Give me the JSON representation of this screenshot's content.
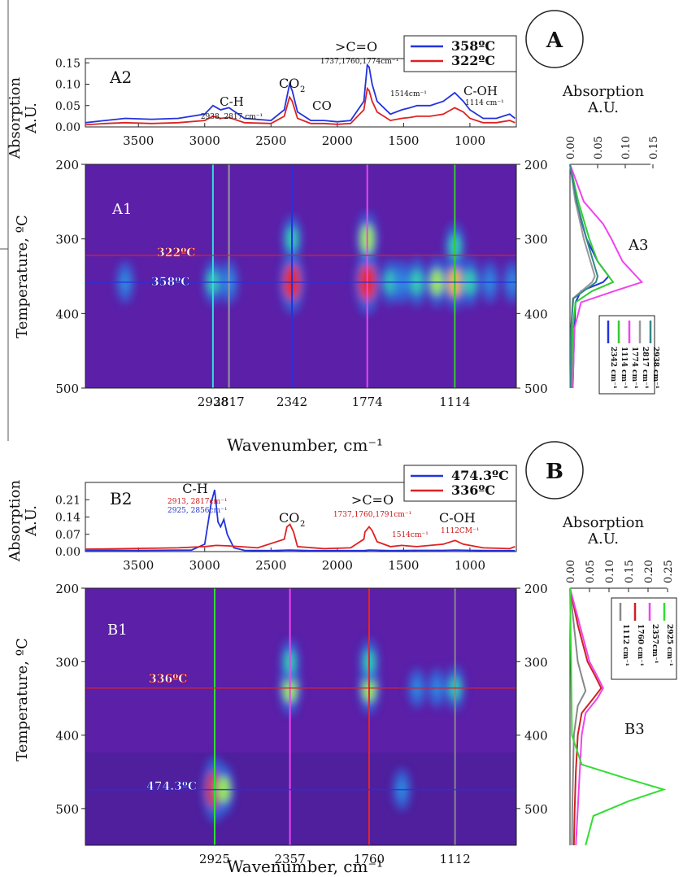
{
  "panels": {
    "A": {
      "letter": "A",
      "spectrum": {
        "label": "A2",
        "ylabel_line1": "Absorption",
        "ylabel_line2": "A.U.",
        "yticks": [
          "0.00",
          "0.05",
          "0.10",
          "0.15"
        ],
        "xticks": [
          "3500",
          "3000",
          "2500",
          "2000",
          "1500",
          "1000"
        ],
        "legend": [
          {
            "name": "358ºC",
            "color": "#2233dd"
          },
          {
            "name": "322ºC",
            "color": "#dd2222"
          }
        ],
        "annotations": {
          "ch": "C-H",
          "ch_sub": "2938, 2817 cm⁻¹",
          "co2_main": "CO",
          "co2_sub": "2",
          "co": "CO",
          "carbonyl": ">C=O",
          "carbonyl_sub": "1737,1760,1774cm⁻¹",
          "peak1514": "1514cm⁻¹",
          "coh": "C-OH",
          "coh_sub": "1114 cm⁻¹"
        }
      },
      "map": {
        "label": "A1",
        "ylabel": "Temperature, ºC",
        "yticks": [
          "200",
          "300",
          "400",
          "500"
        ],
        "marker_hi": "322ºC",
        "marker_lo": "358ºC",
        "vlines": [
          {
            "wn": "2938",
            "color": "#33dddd"
          },
          {
            "wn": "2817",
            "color": "#999999"
          },
          {
            "wn": "2342",
            "color": "#2233dd"
          },
          {
            "wn": "1774",
            "color": "#ee44ee"
          },
          {
            "wn": "1114",
            "color": "#33cc33"
          }
        ],
        "xlabel": "Wavenumber, cm⁻¹"
      },
      "profile": {
        "label": "A3",
        "title_line1": "Absorption",
        "title_line2": "A.U.",
        "xticks": [
          "0.00",
          "0.05",
          "0.10",
          "0.15"
        ],
        "legend": [
          {
            "name": "2342 cm⁻¹",
            "color": "#2233dd"
          },
          {
            "name": "1114 cm⁻¹",
            "color": "#33cc33"
          },
          {
            "name": "1774 cm⁻¹",
            "color": "#ee44ee"
          },
          {
            "name": "2817 cm⁻¹",
            "color": "#999999"
          },
          {
            "name": "2938 cm⁻¹",
            "color": "#338888"
          }
        ]
      }
    },
    "B": {
      "letter": "B",
      "spectrum": {
        "label": "B2",
        "ylabel_line1": "Absorption",
        "ylabel_line2": "A.U.",
        "yticks": [
          "0.00",
          "0.07",
          "0.14",
          "0.21"
        ],
        "xticks": [
          "3500",
          "3000",
          "2500",
          "2000",
          "1500",
          "1000"
        ],
        "legend": [
          {
            "name": "474.3ºC",
            "color": "#2233dd"
          },
          {
            "name": "336ºC",
            "color": "#dd2222"
          }
        ],
        "annotations": {
          "ch": "C-H",
          "ch_sub_red": "2913, 2817cm⁻¹",
          "ch_sub_blue": "2925, 2856cm⁻¹",
          "co2_main": "CO",
          "co2_sub": "2",
          "carbonyl": ">C=O",
          "carbonyl_sub": "1737,1760,1791cm⁻¹",
          "peak1514": "1514cm⁻¹",
          "coh": "C-OH",
          "coh_sub": "1112CM⁻¹"
        }
      },
      "map": {
        "label": "B1",
        "ylabel": "Temperature, ºC",
        "yticks": [
          "200",
          "300",
          "400",
          "500"
        ],
        "marker_hi": "336ºC",
        "marker_lo": "474.3ºC",
        "vlines": [
          {
            "wn": "2925",
            "color": "#33dd33"
          },
          {
            "wn": "2357",
            "color": "#ee44ee"
          },
          {
            "wn": "1760",
            "color": "#ee2222"
          },
          {
            "wn": "1112",
            "color": "#888888"
          }
        ],
        "xlabel": "Wavenumber, cm⁻¹"
      },
      "profile": {
        "label": "B3",
        "title_line1": "Absorption",
        "title_line2": "A.U.",
        "xticks": [
          "0.00",
          "0.05",
          "0.10",
          "0.15",
          "0.20",
          "0.25"
        ],
        "legend": [
          {
            "name": "1112 cm⁻¹",
            "color": "#888888"
          },
          {
            "name": "1760 cm⁻¹",
            "color": "#cc2222"
          },
          {
            "name": "2357cm⁻¹",
            "color": "#ee44ee"
          },
          {
            "name": "2925 cm⁻¹",
            "color": "#33dd33"
          }
        ]
      }
    }
  },
  "chart_data": [
    {
      "type": "line",
      "panel": "A2",
      "xlabel": "",
      "ylabel": "Absorption A.U.",
      "xlim": [
        3900,
        650
      ],
      "ylim": [
        0,
        0.16
      ],
      "series": [
        {
          "name": "358ºC",
          "color": "#2233dd",
          "x": [
            3900,
            3750,
            3600,
            3400,
            3200,
            3000,
            2938,
            2880,
            2817,
            2700,
            2500,
            2400,
            2360,
            2340,
            2300,
            2200,
            2100,
            2000,
            1900,
            1800,
            1774,
            1760,
            1737,
            1700,
            1600,
            1514,
            1450,
            1400,
            1300,
            1200,
            1114,
            1050,
            1000,
            900,
            800,
            700,
            660
          ],
          "y": [
            0.01,
            0.015,
            0.02,
            0.018,
            0.02,
            0.03,
            0.05,
            0.04,
            0.045,
            0.02,
            0.015,
            0.04,
            0.1,
            0.085,
            0.035,
            0.015,
            0.015,
            0.012,
            0.015,
            0.06,
            0.145,
            0.14,
            0.1,
            0.06,
            0.03,
            0.04,
            0.045,
            0.05,
            0.05,
            0.06,
            0.08,
            0.06,
            0.04,
            0.02,
            0.02,
            0.03,
            0.02
          ]
        },
        {
          "name": "322ºC",
          "color": "#dd2222",
          "x": [
            3900,
            3750,
            3600,
            3400,
            3200,
            3000,
            2938,
            2880,
            2817,
            2700,
            2500,
            2400,
            2360,
            2340,
            2300,
            2200,
            2100,
            2000,
            1900,
            1800,
            1774,
            1760,
            1737,
            1700,
            1600,
            1514,
            1450,
            1400,
            1300,
            1200,
            1114,
            1050,
            1000,
            900,
            800,
            700,
            660
          ],
          "y": [
            0.005,
            0.008,
            0.01,
            0.008,
            0.01,
            0.015,
            0.025,
            0.02,
            0.022,
            0.01,
            0.008,
            0.025,
            0.07,
            0.06,
            0.02,
            0.008,
            0.008,
            0.006,
            0.008,
            0.04,
            0.09,
            0.085,
            0.06,
            0.035,
            0.015,
            0.02,
            0.022,
            0.025,
            0.025,
            0.03,
            0.045,
            0.035,
            0.02,
            0.01,
            0.01,
            0.015,
            0.01
          ]
        }
      ]
    },
    {
      "type": "heatmap",
      "panel": "A1",
      "xlabel": "Wavenumber, cm⁻¹",
      "ylabel": "Temperature, ºC",
      "xlim": [
        3900,
        650
      ],
      "ylim": [
        500,
        200
      ],
      "hotspots": [
        {
          "x": 3600,
          "y": 358,
          "v": 0.35
        },
        {
          "x": 2938,
          "y": 358,
          "v": 0.45
        },
        {
          "x": 2817,
          "y": 358,
          "v": 0.4
        },
        {
          "x": 2342,
          "y": 358,
          "v": 0.95
        },
        {
          "x": 2342,
          "y": 300,
          "v": 0.5
        },
        {
          "x": 1774,
          "y": 358,
          "v": 1.0
        },
        {
          "x": 1774,
          "y": 300,
          "v": 0.7
        },
        {
          "x": 1600,
          "y": 358,
          "v": 0.45
        },
        {
          "x": 1514,
          "y": 358,
          "v": 0.4
        },
        {
          "x": 1400,
          "y": 358,
          "v": 0.55
        },
        {
          "x": 1250,
          "y": 358,
          "v": 0.6
        },
        {
          "x": 1114,
          "y": 358,
          "v": 0.75
        },
        {
          "x": 1114,
          "y": 310,
          "v": 0.5
        },
        {
          "x": 1000,
          "y": 358,
          "v": 0.55
        },
        {
          "x": 850,
          "y": 358,
          "v": 0.35
        },
        {
          "x": 680,
          "y": 358,
          "v": 0.35
        }
      ],
      "markers": [
        322,
        358
      ]
    },
    {
      "type": "line",
      "panel": "A3",
      "xlabel": "Absorption A.U.",
      "ylabel": "",
      "xlim": [
        0,
        0.15
      ],
      "ylim": [
        500,
        200
      ],
      "series": [
        {
          "name": "2342 cm⁻¹",
          "color": "#2233dd",
          "temp": [
            200,
            250,
            300,
            330,
            350,
            358,
            370,
            385,
            420,
            500
          ],
          "value": [
            0.0,
            0.01,
            0.03,
            0.05,
            0.07,
            0.06,
            0.02,
            0.01,
            0.008,
            0.005
          ]
        },
        {
          "name": "1114 cm⁻¹",
          "color": "#33cc33",
          "temp": [
            200,
            250,
            300,
            330,
            350,
            358,
            370,
            385,
            420,
            500
          ],
          "value": [
            0.0,
            0.015,
            0.035,
            0.05,
            0.07,
            0.078,
            0.04,
            0.01,
            0.005,
            0.003
          ]
        },
        {
          "name": "1774 cm⁻¹",
          "color": "#ee44ee",
          "temp": [
            200,
            250,
            280,
            300,
            330,
            350,
            358,
            370,
            385,
            420,
            500
          ],
          "value": [
            0.0,
            0.025,
            0.06,
            0.075,
            0.095,
            0.12,
            0.13,
            0.08,
            0.02,
            0.008,
            0.005
          ]
        },
        {
          "name": "2817 cm⁻¹",
          "color": "#999999",
          "temp": [
            200,
            250,
            300,
            350,
            358,
            380,
            420,
            500
          ],
          "value": [
            0.0,
            0.01,
            0.025,
            0.045,
            0.04,
            0.005,
            0.002,
            0.001
          ]
        },
        {
          "name": "2938 cm⁻¹",
          "color": "#338888",
          "temp": [
            200,
            250,
            300,
            350,
            358,
            380,
            420,
            500
          ],
          "value": [
            0.0,
            0.012,
            0.03,
            0.05,
            0.047,
            0.006,
            0.002,
            0.001
          ]
        }
      ]
    },
    {
      "type": "line",
      "panel": "B2",
      "xlabel": "",
      "ylabel": "Absorption A.U.",
      "xlim": [
        3900,
        650
      ],
      "ylim": [
        0,
        0.28
      ],
      "series": [
        {
          "name": "474.3ºC",
          "color": "#2233dd",
          "x": [
            3900,
            3500,
            3100,
            3000,
            2950,
            2925,
            2900,
            2880,
            2856,
            2830,
            2780,
            2700,
            2500,
            2360,
            2200,
            2000,
            1800,
            1760,
            1600,
            1400,
            1200,
            1112,
            1000,
            800,
            660
          ],
          "y": [
            0.005,
            0.005,
            0.006,
            0.03,
            0.2,
            0.25,
            0.12,
            0.1,
            0.13,
            0.07,
            0.015,
            0.005,
            0.004,
            0.006,
            0.004,
            0.004,
            0.004,
            0.006,
            0.004,
            0.005,
            0.005,
            0.006,
            0.005,
            0.004,
            0.004
          ]
        },
        {
          "name": "336ºC",
          "color": "#dd2222",
          "x": [
            3900,
            3600,
            3200,
            3000,
            2913,
            2817,
            2600,
            2400,
            2380,
            2357,
            2330,
            2300,
            2100,
            1900,
            1800,
            1791,
            1760,
            1737,
            1700,
            1600,
            1514,
            1400,
            1200,
            1112,
            1050,
            900,
            700,
            660
          ],
          "y": [
            0.01,
            0.012,
            0.015,
            0.02,
            0.025,
            0.023,
            0.015,
            0.05,
            0.1,
            0.11,
            0.08,
            0.02,
            0.012,
            0.015,
            0.05,
            0.08,
            0.1,
            0.085,
            0.04,
            0.02,
            0.025,
            0.02,
            0.03,
            0.045,
            0.03,
            0.015,
            0.012,
            0.02
          ]
        }
      ]
    },
    {
      "type": "heatmap",
      "panel": "B1",
      "xlabel": "Wavenumber, cm⁻¹",
      "ylabel": "Temperature, ºC",
      "xlim": [
        3900,
        650
      ],
      "ylim": [
        550,
        200
      ],
      "hotspots": [
        {
          "x": 2357,
          "y": 336,
          "v": 0.7
        },
        {
          "x": 2357,
          "y": 300,
          "v": 0.45
        },
        {
          "x": 1760,
          "y": 336,
          "v": 0.65
        },
        {
          "x": 1760,
          "y": 300,
          "v": 0.45
        },
        {
          "x": 1112,
          "y": 336,
          "v": 0.45
        },
        {
          "x": 1400,
          "y": 336,
          "v": 0.3
        },
        {
          "x": 1250,
          "y": 336,
          "v": 0.3
        },
        {
          "x": 2925,
          "y": 474,
          "v": 1.0
        },
        {
          "x": 2856,
          "y": 474,
          "v": 0.6
        },
        {
          "x": 1514,
          "y": 474,
          "v": 0.35
        }
      ],
      "markers": [
        336,
        474.3
      ]
    },
    {
      "type": "line",
      "panel": "B3",
      "xlabel": "Absorption A.U.",
      "ylabel": "",
      "xlim": [
        0,
        0.25
      ],
      "ylim": [
        550,
        200
      ],
      "series": [
        {
          "name": "1112 cm⁻¹",
          "color": "#888888",
          "temp": [
            200,
            250,
            300,
            330,
            340,
            360,
            400,
            450,
            500,
            550
          ],
          "value": [
            0.0,
            0.01,
            0.02,
            0.035,
            0.04,
            0.02,
            0.01,
            0.008,
            0.006,
            0.005
          ]
        },
        {
          "name": "1760 cm⁻¹",
          "color": "#cc2222",
          "temp": [
            200,
            250,
            300,
            320,
            336,
            350,
            370,
            400,
            450,
            500,
            550
          ],
          "value": [
            0.0,
            0.02,
            0.045,
            0.065,
            0.08,
            0.06,
            0.03,
            0.02,
            0.015,
            0.012,
            0.01
          ]
        },
        {
          "name": "2357cm⁻¹",
          "color": "#ee44ee",
          "temp": [
            200,
            250,
            300,
            320,
            336,
            350,
            370,
            400,
            450,
            500,
            550
          ],
          "value": [
            0.0,
            0.025,
            0.05,
            0.07,
            0.085,
            0.07,
            0.04,
            0.03,
            0.025,
            0.02,
            0.015
          ]
        },
        {
          "name": "2925 cm⁻¹",
          "color": "#33dd33",
          "temp": [
            200,
            300,
            400,
            440,
            460,
            474,
            490,
            510,
            550
          ],
          "value": [
            0.0,
            0.003,
            0.005,
            0.03,
            0.15,
            0.24,
            0.15,
            0.06,
            0.04
          ]
        }
      ]
    }
  ]
}
